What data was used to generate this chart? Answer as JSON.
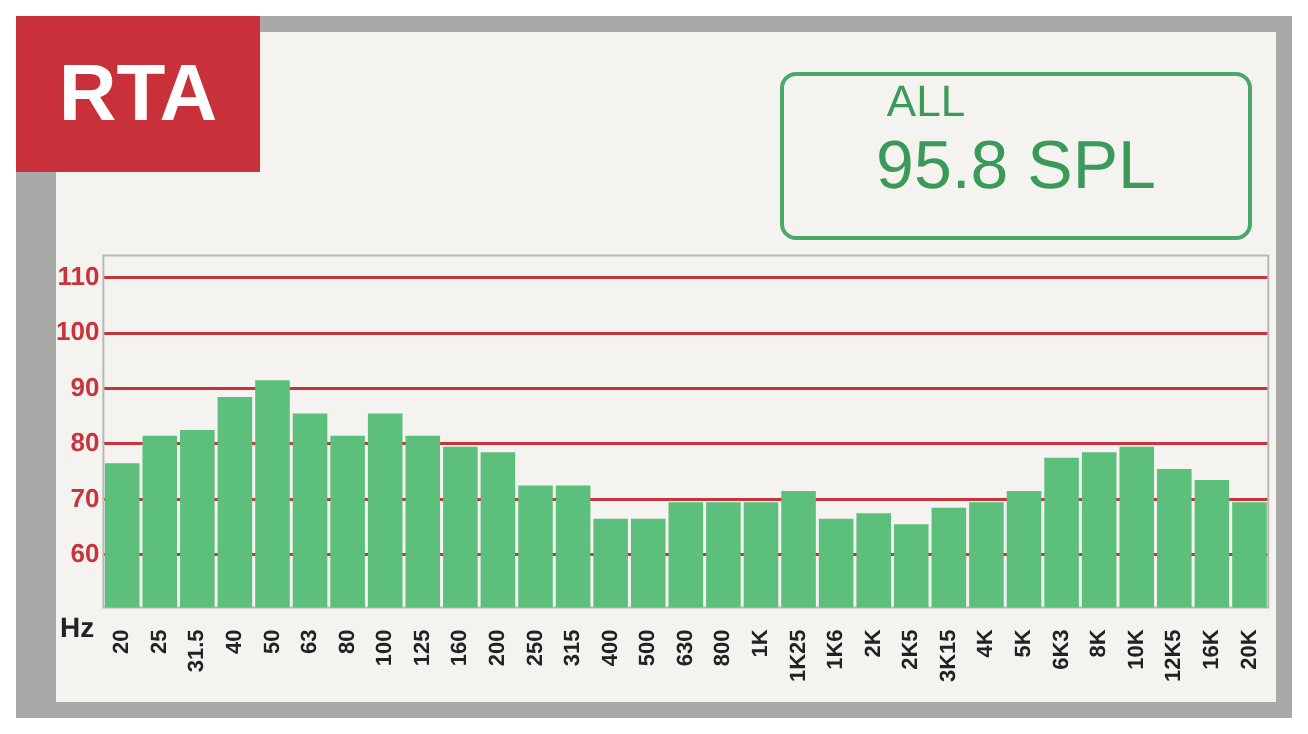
{
  "chart_data": {
    "type": "bar",
    "title": "RTA",
    "xlabel": "Hz",
    "annotations": [
      "ALL",
      "95.8 SPL"
    ],
    "categories": [
      "20",
      "25",
      "31.5",
      "40",
      "50",
      "63",
      "80",
      "100",
      "125",
      "160",
      "200",
      "250",
      "315",
      "400",
      "500",
      "630",
      "800",
      "1K",
      "1K25",
      "1K6",
      "2K",
      "2K5",
      "3K15",
      "4K",
      "5K",
      "6K3",
      "8K",
      "10K",
      "12K5",
      "16K",
      "20K"
    ],
    "values": [
      76.5,
      81.5,
      82.5,
      88.5,
      91.5,
      85.5,
      81.5,
      85.5,
      81.5,
      79.5,
      78.5,
      72.5,
      72.5,
      66.5,
      66.5,
      69.5,
      69.5,
      69.5,
      71.5,
      66.5,
      67.5,
      65.5,
      68.5,
      69.5,
      71.5,
      77.5,
      78.5,
      79.5,
      75.5,
      73.5,
      69.5
    ],
    "color": "#5cbf7c",
    "ylim": [
      50.5,
      114
    ],
    "yticks": [
      60,
      70,
      80,
      90,
      100,
      110
    ],
    "grid": "y"
  }
}
